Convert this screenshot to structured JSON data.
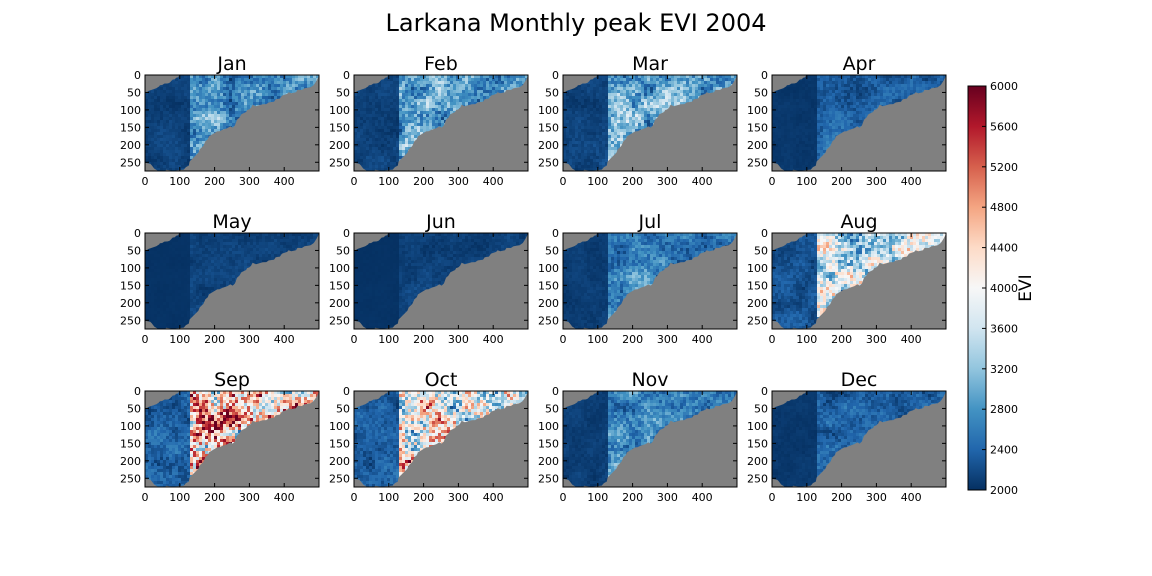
{
  "chart_data": {
    "type": "heatmap",
    "title": "Larkana Monthly peak EVI 2004",
    "x_ticks": [
      0,
      100,
      200,
      300,
      400
    ],
    "y_ticks": [
      0,
      50,
      100,
      150,
      200,
      250
    ],
    "xlim": [
      0,
      500
    ],
    "ylim": [
      275,
      0
    ],
    "no_data_color": "#808080",
    "colorbar": {
      "label": "EVI",
      "min": 2000,
      "max": 6000,
      "ticks": [
        2000,
        2400,
        2800,
        3200,
        3600,
        4000,
        4400,
        4800,
        5200,
        5600,
        6000
      ],
      "colormap": "RdBu_r",
      "stops": [
        "#053061",
        "#2166ac",
        "#4393c3",
        "#92c5de",
        "#d1e5f0",
        "#f7f7f7",
        "#fddbc7",
        "#f4a582",
        "#d6604d",
        "#b2182b",
        "#67001f"
      ]
    },
    "panels": [
      {
        "title": "Jan",
        "mean_evi": 2700
      },
      {
        "title": "Feb",
        "mean_evi": 2800
      },
      {
        "title": "Mar",
        "mean_evi": 2900
      },
      {
        "title": "Apr",
        "mean_evi": 2250
      },
      {
        "title": "May",
        "mean_evi": 2050
      },
      {
        "title": "Jun",
        "mean_evi": 2050
      },
      {
        "title": "Jul",
        "mean_evi": 2500
      },
      {
        "title": "Aug",
        "mean_evi": 3500
      },
      {
        "title": "Sep",
        "mean_evi": 4400
      },
      {
        "title": "Oct",
        "mean_evi": 4100
      },
      {
        "title": "Nov",
        "mean_evi": 2600
      },
      {
        "title": "Dec",
        "mean_evi": 2300
      }
    ]
  }
}
